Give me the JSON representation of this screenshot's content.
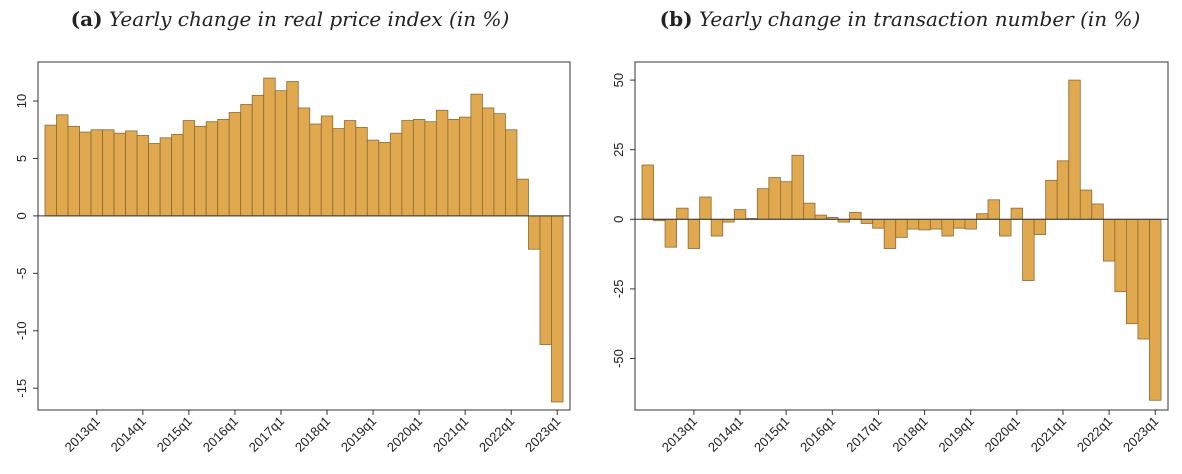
{
  "chart_data": [
    {
      "type": "bar",
      "label": "(a)",
      "title": "Yearly change in real price index (in %)",
      "categories": [
        null,
        null,
        null,
        null,
        "2013q1",
        null,
        null,
        null,
        "2014q1",
        null,
        null,
        null,
        "2015q1",
        null,
        null,
        null,
        "2016q1",
        null,
        null,
        null,
        "2017q1",
        null,
        null,
        null,
        "2018q1",
        null,
        null,
        null,
        "2019q1",
        null,
        null,
        null,
        "2020q1",
        null,
        null,
        null,
        "2021q1",
        null,
        null,
        null,
        "2022q1",
        null,
        null,
        null,
        "2023q1"
      ],
      "values": [
        7.9,
        8.8,
        7.8,
        7.3,
        7.5,
        7.5,
        7.2,
        7.4,
        7.0,
        6.3,
        6.8,
        7.1,
        8.3,
        7.8,
        8.2,
        8.4,
        9.0,
        9.7,
        10.5,
        12.0,
        10.9,
        11.7,
        9.4,
        8.0,
        8.7,
        7.6,
        8.3,
        7.7,
        6.6,
        6.4,
        7.2,
        8.3,
        8.4,
        8.2,
        9.2,
        8.4,
        8.6,
        10.6,
        9.4,
        8.9,
        7.5,
        3.2,
        -2.9,
        -11.2,
        -16.2
      ],
      "color": "#e0a94f",
      "ylim": [
        -16.9,
        13.4
      ],
      "yticks": [
        -15,
        -10,
        -5,
        0,
        5,
        10
      ]
    },
    {
      "type": "bar",
      "label": "(b)",
      "title": "Yearly change in transaction number (in %)",
      "categories": [
        null,
        null,
        null,
        null,
        "2013q1",
        null,
        null,
        null,
        "2014q1",
        null,
        null,
        null,
        "2015q1",
        null,
        null,
        null,
        "2016q1",
        null,
        null,
        null,
        "2017q1",
        null,
        null,
        null,
        "2018q1",
        null,
        null,
        null,
        "2019q1",
        null,
        null,
        null,
        "2020q1",
        null,
        null,
        null,
        "2021q1",
        null,
        null,
        null,
        "2022q1",
        null,
        null,
        null,
        "2023q1"
      ],
      "values": [
        19.5,
        -0.5,
        -10,
        4,
        -10.5,
        8,
        -6,
        -1,
        3.5,
        0.3,
        11,
        15,
        13.5,
        23,
        5.8,
        1.5,
        0.7,
        -1,
        2.5,
        -1.5,
        -3.2,
        -10.5,
        -6.5,
        -3.5,
        -3.8,
        -3.5,
        -6,
        -3.2,
        -3.5,
        2,
        7,
        -6,
        4,
        -22,
        -5.5,
        14,
        21,
        50,
        10.5,
        5.5,
        -15,
        -26,
        -37.5,
        -43,
        -65
      ],
      "color": "#e0a94f",
      "ylim": [
        -68.5,
        56.5
      ],
      "yticks": [
        -50,
        -25,
        0,
        25,
        50
      ]
    }
  ]
}
